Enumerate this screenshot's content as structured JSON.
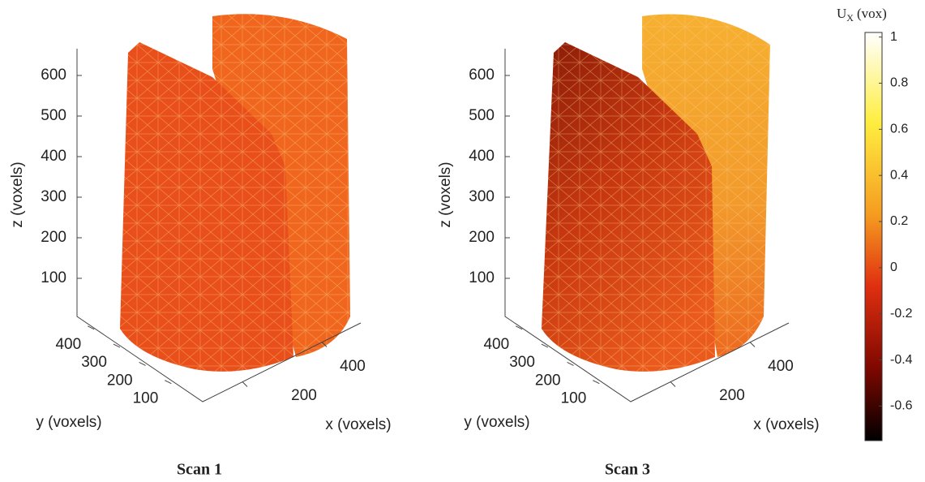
{
  "panels": [
    {
      "caption": "Scan 1",
      "z_axis": {
        "label": "z (voxels)",
        "ticks": [
          100,
          200,
          300,
          400,
          500,
          600
        ]
      },
      "y_axis": {
        "label": "y (voxels)",
        "ticks": [
          100,
          200,
          300,
          400
        ]
      },
      "x_axis": {
        "label": "x (voxels)",
        "ticks": [
          200,
          400
        ]
      }
    },
    {
      "caption": "Scan 3",
      "z_axis": {
        "label": "z (voxels)",
        "ticks": [
          100,
          200,
          300,
          400,
          500,
          600
        ]
      },
      "y_axis": {
        "label": "y (voxels)",
        "ticks": [
          100,
          200,
          300,
          400
        ]
      },
      "x_axis": {
        "label": "x (voxels)",
        "ticks": [
          200,
          400
        ]
      }
    }
  ],
  "colorbar": {
    "title": {
      "symbol": "U",
      "subscript": "X",
      "unit": "(vox)"
    },
    "lim": [
      -0.75,
      1.02
    ],
    "ticks": [
      -0.6,
      -0.4,
      -0.2,
      0,
      0.2,
      0.4,
      0.6,
      0.8,
      1
    ]
  }
}
